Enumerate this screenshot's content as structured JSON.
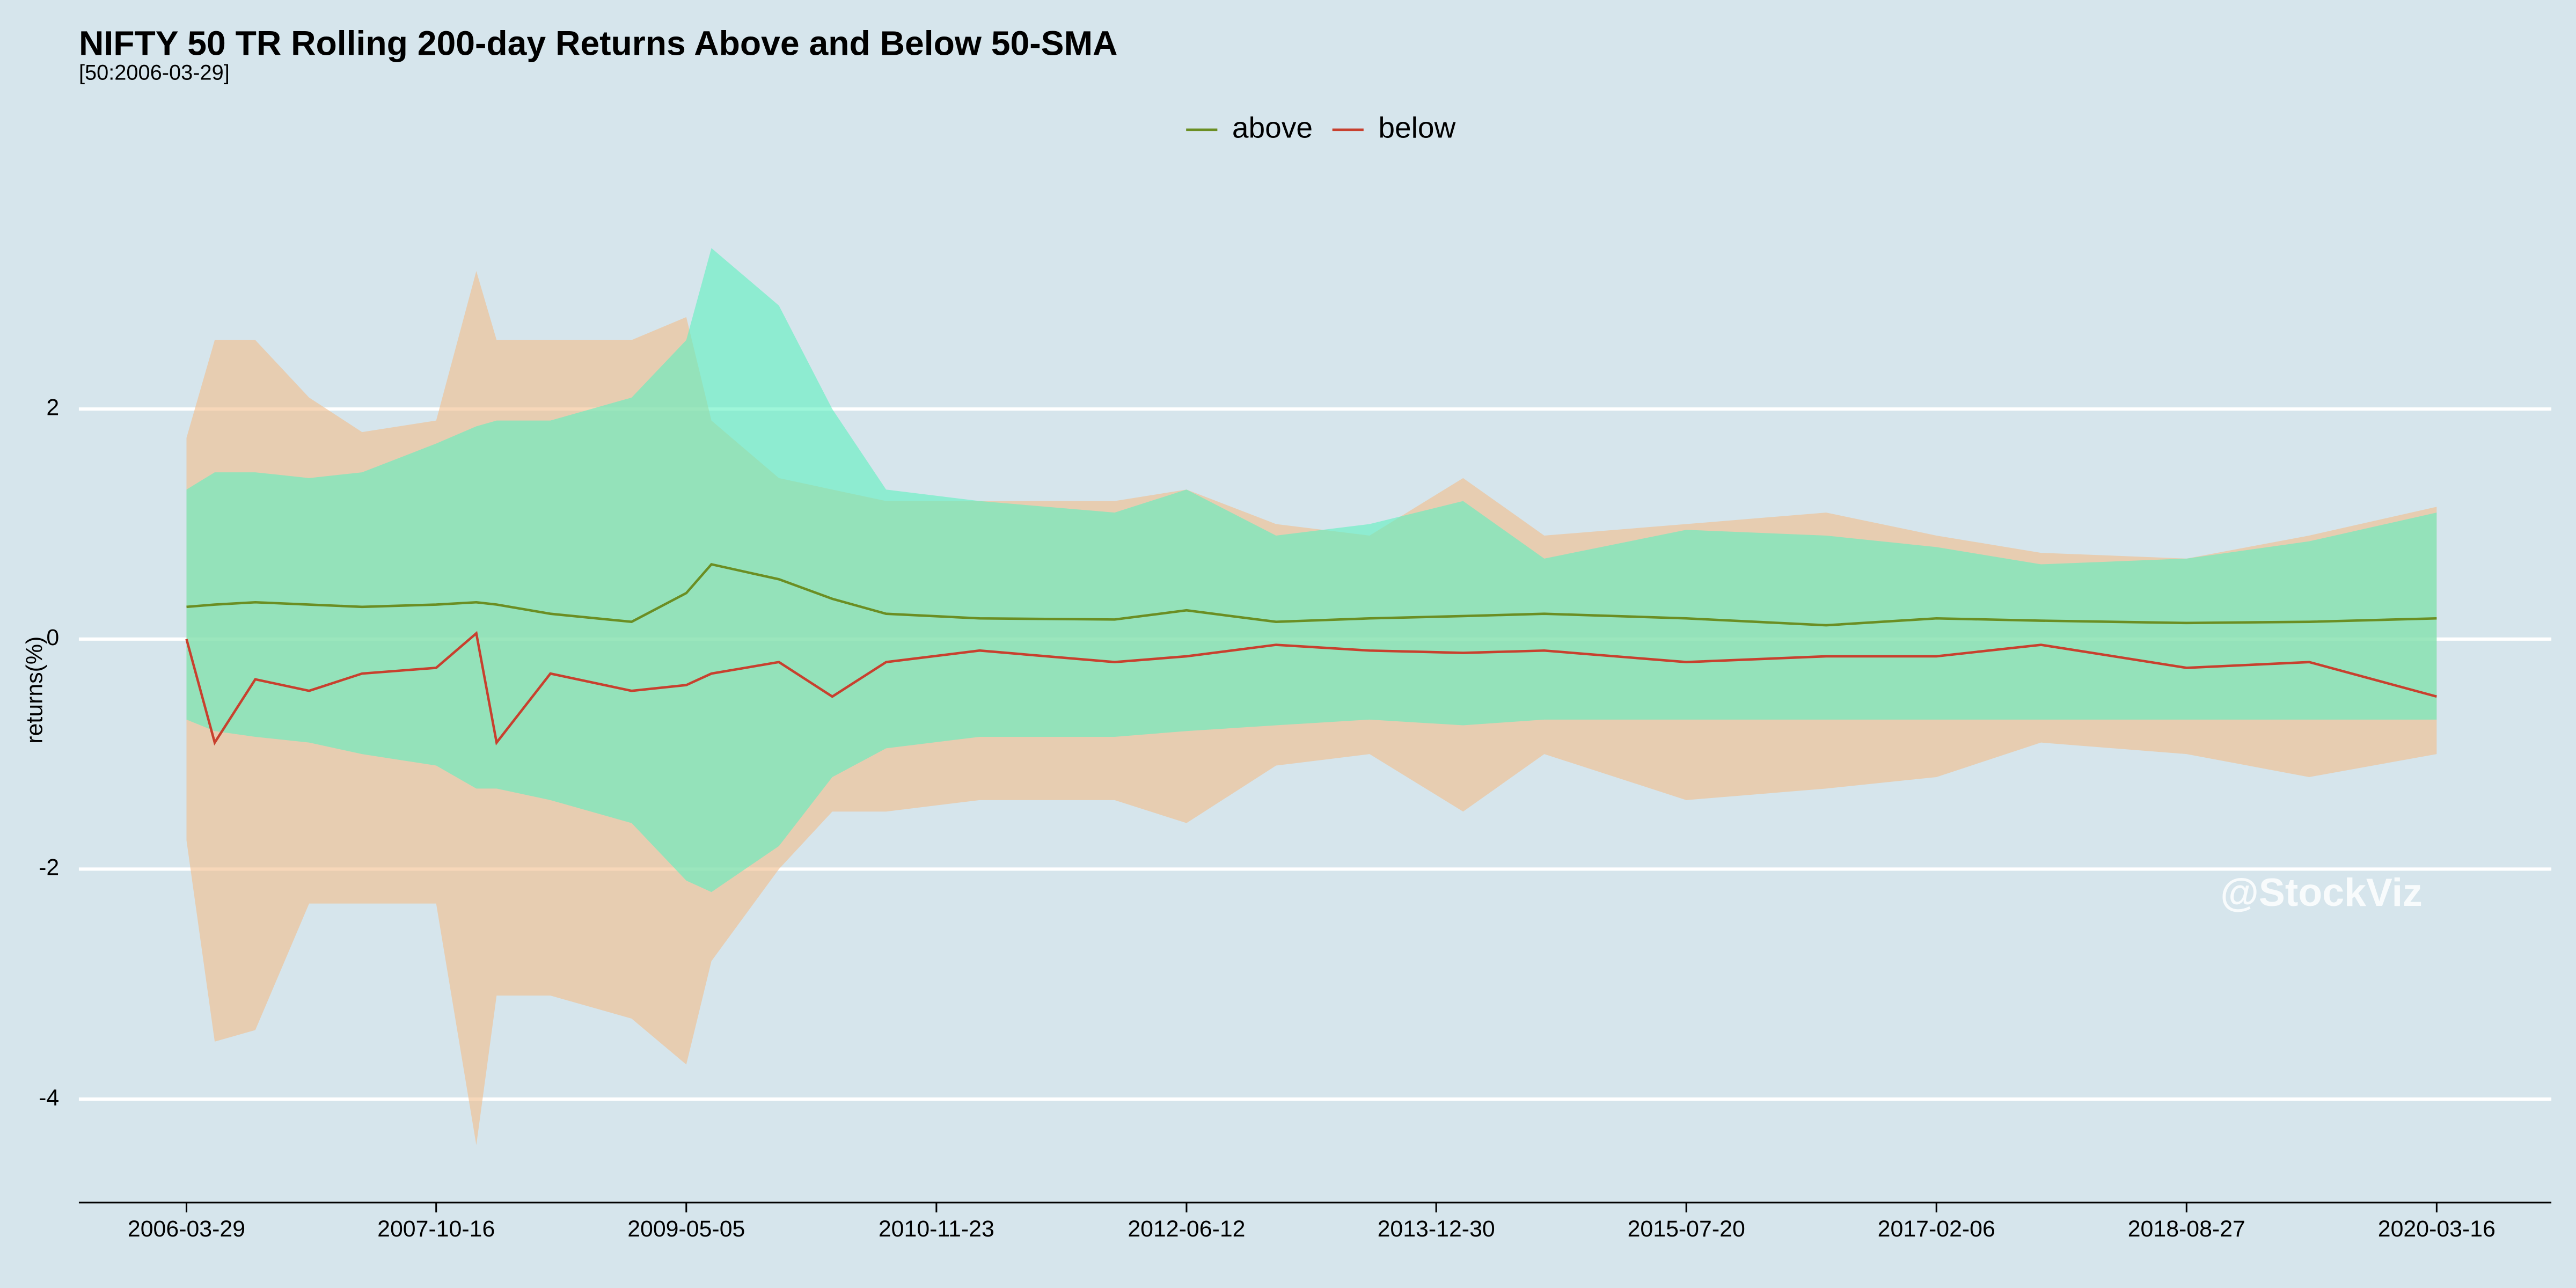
{
  "chart_data": {
    "type": "line",
    "title": "NIFTY 50 TR Rolling 200-day Returns Above and Below 50-SMA",
    "subtitle": "[50:2006-03-29]",
    "y_label": "returns(%)",
    "annotation": "@StockViz",
    "legend": "top",
    "grid": true,
    "x": [
      "2006-03-29",
      "2006-06-01",
      "2006-09-01",
      "2007-01-01",
      "2007-05-01",
      "2007-10-16",
      "2008-01-15",
      "2008-03-01",
      "2008-07-01",
      "2009-01-01",
      "2009-05-05",
      "2009-07-01",
      "2009-12-01",
      "2010-04-01",
      "2010-08-01",
      "2011-03-01",
      "2012-01-01",
      "2012-06-12",
      "2013-01-01",
      "2013-08-01",
      "2014-03-01",
      "2014-09-01",
      "2015-07-20",
      "2016-06-01",
      "2017-02-06",
      "2017-10-01",
      "2018-08-27",
      "2019-06-01",
      "2020-03-16"
    ],
    "xlim": [
      "2005-07-28",
      "2020-12-01"
    ],
    "xticks": [
      "2006-03-29",
      "2007-10-16",
      "2009-05-05",
      "2010-11-23",
      "2012-06-12",
      "2013-12-30",
      "2015-07-20",
      "2017-02-06",
      "2018-08-27",
      "2020-03-16"
    ],
    "ylim": [
      -4.9,
      4.0
    ],
    "yticks": [
      -4,
      -2,
      0,
      2
    ],
    "series": [
      {
        "name": "above",
        "color": "#6b8e23",
        "band_color": "#5ef0c0",
        "values": [
          0.28,
          0.3,
          0.32,
          0.3,
          0.28,
          0.3,
          0.32,
          0.3,
          0.22,
          0.15,
          0.4,
          0.65,
          0.52,
          0.35,
          0.22,
          0.18,
          0.17,
          0.25,
          0.15,
          0.18,
          0.2,
          0.22,
          0.18,
          0.12,
          0.18,
          0.16,
          0.14,
          0.15,
          0.18
        ],
        "band_upper": [
          1.3,
          1.45,
          1.45,
          1.4,
          1.45,
          1.7,
          1.85,
          1.9,
          1.9,
          2.1,
          2.6,
          3.4,
          2.9,
          2.0,
          1.3,
          1.2,
          1.1,
          1.3,
          0.9,
          1.0,
          1.2,
          0.7,
          0.95,
          0.9,
          0.8,
          0.65,
          0.7,
          0.85,
          1.1
        ],
        "band_lower": [
          -0.7,
          -0.8,
          -0.85,
          -0.9,
          -1.0,
          -1.1,
          -1.3,
          -1.3,
          -1.4,
          -1.6,
          -2.1,
          -2.2,
          -1.8,
          -1.2,
          -0.95,
          -0.85,
          -0.85,
          -0.8,
          -0.75,
          -0.7,
          -0.75,
          -0.7,
          -0.7,
          -0.7,
          -0.7,
          -0.7,
          -0.7,
          -0.7,
          -0.7
        ]
      },
      {
        "name": "below",
        "color": "#c8402e",
        "band_color": "#f2bd8a",
        "values": [
          0,
          -0.9,
          -0.35,
          -0.45,
          -0.3,
          -0.25,
          0.05,
          -0.9,
          -0.3,
          -0.45,
          -0.4,
          -0.3,
          -0.2,
          -0.5,
          -0.2,
          -0.1,
          -0.2,
          -0.15,
          -0.05,
          -0.1,
          -0.12,
          -0.1,
          -0.2,
          -0.15,
          -0.15,
          -0.05,
          -0.25,
          -0.2,
          -0.5
        ],
        "band_upper": [
          1.75,
          2.6,
          2.6,
          2.1,
          1.8,
          1.9,
          3.2,
          2.6,
          2.6,
          2.6,
          2.8,
          1.9,
          1.4,
          1.3,
          1.2,
          1.2,
          1.2,
          1.3,
          1.0,
          0.9,
          1.4,
          0.9,
          1.0,
          1.1,
          0.9,
          0.75,
          0.7,
          0.9,
          1.15
        ],
        "band_lower": [
          -1.75,
          -3.5,
          -3.4,
          -2.3,
          -2.3,
          -2.3,
          -4.4,
          -3.1,
          -3.1,
          -3.3,
          -3.7,
          -2.8,
          -2.0,
          -1.5,
          -1.5,
          -1.4,
          -1.4,
          -1.6,
          -1.1,
          -1.0,
          -1.5,
          -1.0,
          -1.4,
          -1.3,
          -1.2,
          -0.9,
          -1.0,
          -1.2,
          -1.0
        ]
      }
    ]
  }
}
